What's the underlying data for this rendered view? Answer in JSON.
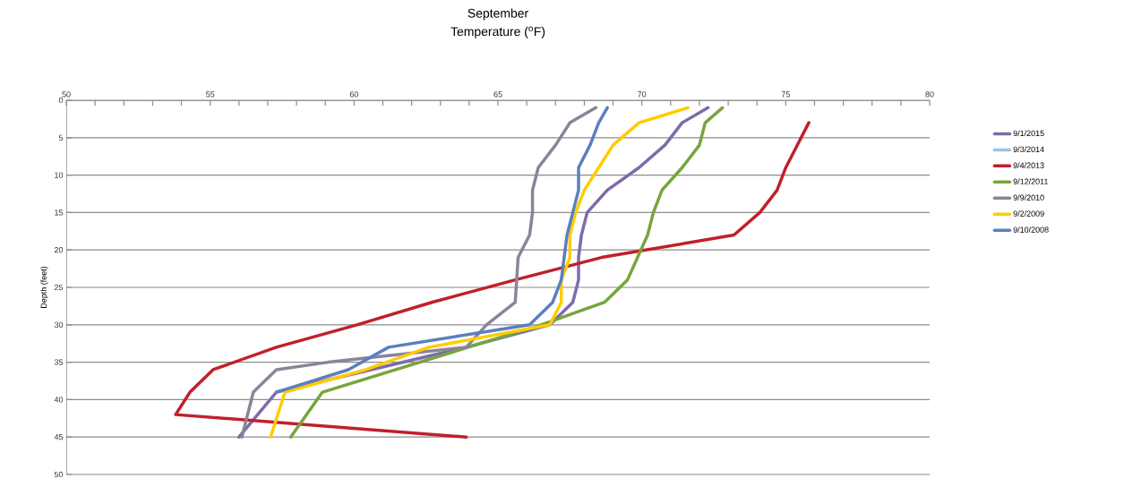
{
  "chart_data": {
    "type": "line",
    "title": "September",
    "xlabel": "Temperature ($^{o}$F)",
    "ylabel": "Depth (feet)",
    "xlim": [
      50,
      80
    ],
    "ylim": [
      50,
      0
    ],
    "xticks": [
      50,
      {
        "value": 51,
        "label": null
      },
      {
        "value": 52,
        "label": null
      },
      {
        "value": 53,
        "label": null
      },
      {
        "value": 54,
        "label": null
      },
      55,
      {
        "value": 56,
        "label": null
      },
      {
        "value": 57,
        "label": null
      },
      {
        "value": 58,
        "label": null
      },
      {
        "value": 59,
        "label": null
      },
      60,
      {
        "value": 61,
        "label": null
      },
      {
        "value": 62,
        "label": null
      },
      {
        "value": 63,
        "label": null
      },
      {
        "value": 64,
        "label": null
      },
      65,
      {
        "value": 66,
        "label": null
      },
      {
        "value": 67,
        "label": null
      },
      {
        "value": 68,
        "label": null
      },
      {
        "value": 69,
        "label": null
      },
      70,
      {
        "value": 71,
        "label": null
      },
      {
        "value": 72,
        "label": null
      },
      {
        "value": 73,
        "label": null
      },
      {
        "value": 74,
        "label": null
      },
      75,
      {
        "value": 76,
        "label": null
      },
      {
        "value": 77,
        "label": null
      },
      {
        "value": 78,
        "label": null
      },
      {
        "value": 79,
        "label": null
      },
      80
    ],
    "yticks": [
      0,
      5,
      10,
      15,
      20,
      25,
      30,
      35,
      40,
      45,
      50
    ],
    "grid": "y",
    "legend": "right",
    "marker": "none",
    "line_style": "solid",
    "series": [
      {
        "name": "9/1/2015",
        "color": "#7f6aad",
        "x": [
          72.3,
          71.4,
          70.8,
          69.9,
          68.8,
          68.1,
          67.9,
          67.8,
          67.8,
          67.6,
          66.8,
          63.9,
          57.3,
          56.0
        ],
        "values": [
          1,
          3,
          6,
          9,
          12,
          15,
          18,
          21,
          24,
          27,
          30,
          33,
          39,
          45
        ]
      },
      {
        "name": "9/3/2014",
        "color": "#9dc3e0"
      },
      {
        "name": "9/4/2013",
        "color": "#c0202a",
        "x": [
          75.8,
          75.0,
          74.7,
          74.1,
          73.2,
          68.6,
          65.6,
          62.7,
          60.1,
          57.3,
          55.1,
          54.3,
          53.8,
          63.9
        ],
        "values": [
          3,
          9,
          12,
          15,
          18,
          21,
          24,
          27,
          30,
          33,
          36,
          39,
          42,
          45
        ]
      },
      {
        "name": "9/12/2011",
        "color": "#77a53c",
        "x": [
          72.8,
          72.2,
          72.0,
          71.4,
          70.7,
          70.4,
          70.2,
          69.5,
          68.7,
          66.5,
          58.9,
          57.8
        ],
        "values": [
          1,
          3,
          6,
          9,
          12,
          15,
          18,
          24,
          27,
          30,
          39,
          45
        ]
      },
      {
        "name": "9/9/2010",
        "color": "#898597",
        "x": [
          68.4,
          67.5,
          67.0,
          66.4,
          66.2,
          66.2,
          66.1,
          65.7,
          65.6,
          64.6,
          63.9,
          59.1,
          57.3,
          56.5,
          56.1
        ],
        "values": [
          1,
          3,
          6,
          9,
          12,
          15,
          18,
          21,
          27,
          30,
          33,
          35,
          36,
          39,
          45
        ]
      },
      {
        "name": "9/2/2009",
        "color": "#ffcc00",
        "x": [
          71.6,
          69.9,
          69.0,
          68.5,
          68.0,
          67.7,
          67.5,
          67.5,
          67.2,
          67.2,
          66.8,
          62.6,
          60.4,
          57.6,
          57.1
        ],
        "values": [
          1,
          3,
          6,
          9,
          12,
          15,
          18,
          21,
          24,
          27,
          30,
          33,
          36,
          39,
          45
        ]
      },
      {
        "name": "9/10/2008",
        "color": "#5a7fc1",
        "x": [
          68.8,
          68.5,
          68.2,
          67.8,
          67.8,
          67.6,
          67.4,
          67.3,
          67.2,
          66.9,
          66.1,
          61.2,
          59.8,
          57.3
        ],
        "values": [
          1,
          3,
          6,
          9,
          12,
          15,
          18,
          21,
          24,
          27,
          30,
          33,
          36,
          39
        ]
      }
    ]
  }
}
